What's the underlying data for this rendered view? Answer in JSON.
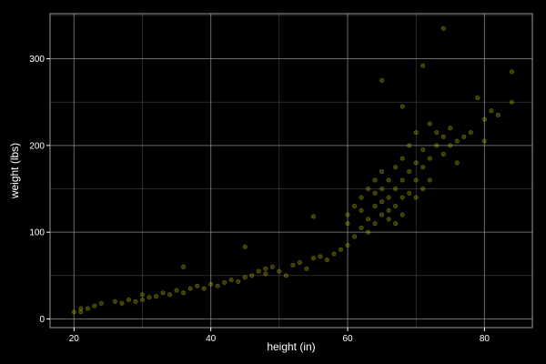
{
  "chart_data": {
    "type": "scatter",
    "title": "",
    "xlabel": "height (in)",
    "ylabel": "weight (lbs)",
    "xlim": [
      16.5,
      87
    ],
    "ylim": [
      -10,
      352
    ],
    "x_ticks": [
      20,
      40,
      60,
      80
    ],
    "y_ticks": [
      0,
      100,
      200,
      300
    ],
    "x_tick_labels": [
      "20",
      "40",
      "60",
      "80"
    ],
    "y_tick_labels": [
      "0",
      "100",
      "200",
      "300"
    ],
    "grid": true,
    "legend": "none",
    "colors": {
      "background": "#000000",
      "grid": "#999999",
      "points": "#c8c800",
      "text": "#ffffff"
    },
    "point_alpha": 0.3,
    "x": [
      20,
      21,
      21,
      22,
      23,
      24,
      26,
      27,
      28,
      29,
      30,
      30,
      31,
      32,
      33,
      34,
      35,
      36,
      37,
      38,
      39,
      40,
      41,
      42,
      43,
      44,
      45,
      46,
      47,
      48,
      48,
      49,
      50,
      51,
      52,
      53,
      54,
      55,
      56,
      57,
      58,
      59,
      60,
      60,
      61,
      61,
      62,
      62,
      62,
      63,
      63,
      63,
      64,
      64,
      64,
      64,
      65,
      65,
      65,
      65,
      66,
      66,
      66,
      66,
      67,
      67,
      67,
      67,
      68,
      68,
      68,
      68,
      69,
      69,
      69,
      70,
      70,
      70,
      70,
      71,
      71,
      71,
      72,
      72,
      72,
      73,
      73,
      74,
      74,
      75,
      75,
      76,
      76,
      77,
      78,
      79,
      80,
      80,
      81,
      82,
      84,
      84,
      74,
      71,
      65,
      68,
      60,
      55,
      45,
      36
    ],
    "y": [
      8,
      8,
      12,
      12,
      15,
      18,
      20,
      18,
      22,
      20,
      22,
      28,
      25,
      26,
      30,
      28,
      33,
      30,
      35,
      38,
      35,
      40,
      38,
      42,
      45,
      43,
      48,
      50,
      55,
      58,
      52,
      60,
      55,
      50,
      62,
      65,
      58,
      70,
      72,
      68,
      75,
      80,
      110,
      120,
      95,
      130,
      125,
      140,
      105,
      115,
      150,
      100,
      130,
      145,
      160,
      110,
      120,
      150,
      135,
      170,
      140,
      125,
      160,
      115,
      150,
      175,
      130,
      110,
      160,
      140,
      185,
      120,
      200,
      145,
      170,
      180,
      140,
      160,
      215,
      150,
      175,
      195,
      185,
      160,
      225,
      200,
      215,
      210,
      190,
      200,
      220,
      205,
      180,
      210,
      215,
      255,
      230,
      205,
      240,
      235,
      250,
      285,
      335,
      292,
      275,
      245,
      85,
      118,
      83,
      60
    ]
  }
}
